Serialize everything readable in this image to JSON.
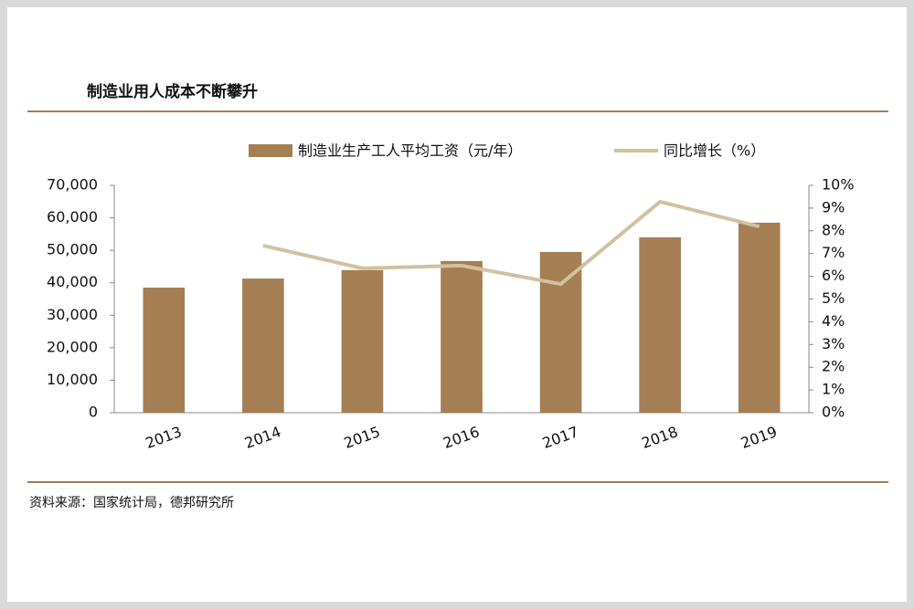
{
  "chart_data": {
    "type": "bar-line",
    "title": "制造业用人成本不断攀升",
    "categories": [
      "2013",
      "2014",
      "2015",
      "2016",
      "2017",
      "2018",
      "2019"
    ],
    "series": [
      {
        "name": "制造业生产工人平均工资（元/年）",
        "type": "bar",
        "color": "#a57e53",
        "values": [
          38500,
          41300,
          43900,
          46700,
          49500,
          54000,
          58500
        ]
      },
      {
        "name": "同比增长（%）",
        "type": "line",
        "axis": "y2",
        "color": "#d1c19f",
        "values": [
          null,
          7.35,
          6.35,
          6.47,
          5.66,
          9.28,
          8.19
        ]
      }
    ],
    "ylim": [
      0,
      70000
    ],
    "yticks": [
      0,
      {
        "value": 10000,
        "label": "10,000"
      },
      {
        "value": 20000,
        "label": "20,000"
      },
      {
        "value": 30000,
        "label": "30,000"
      },
      {
        "value": 40000,
        "label": "40,000"
      },
      {
        "value": 50000,
        "label": "50,000"
      },
      {
        "value": 60000,
        "label": "60,000"
      },
      {
        "value": 70000,
        "label": "70,000"
      }
    ],
    "y2lim": [
      0,
      10
    ],
    "y2ticks": [
      {
        "value": 0,
        "label": "0%"
      },
      {
        "value": 1,
        "label": "1%"
      },
      {
        "value": 2,
        "label": "2%"
      },
      {
        "value": 3,
        "label": "3%"
      },
      {
        "value": 4,
        "label": "4%"
      },
      {
        "value": 5,
        "label": "5%"
      },
      {
        "value": 6,
        "label": "6%"
      },
      {
        "value": 7,
        "label": "7%"
      },
      {
        "value": 8,
        "label": "8%"
      },
      {
        "value": 9,
        "label": "9%"
      },
      {
        "value": 10,
        "label": "10%"
      }
    ],
    "source": "资料来源：国家统计局，德邦研究所"
  }
}
